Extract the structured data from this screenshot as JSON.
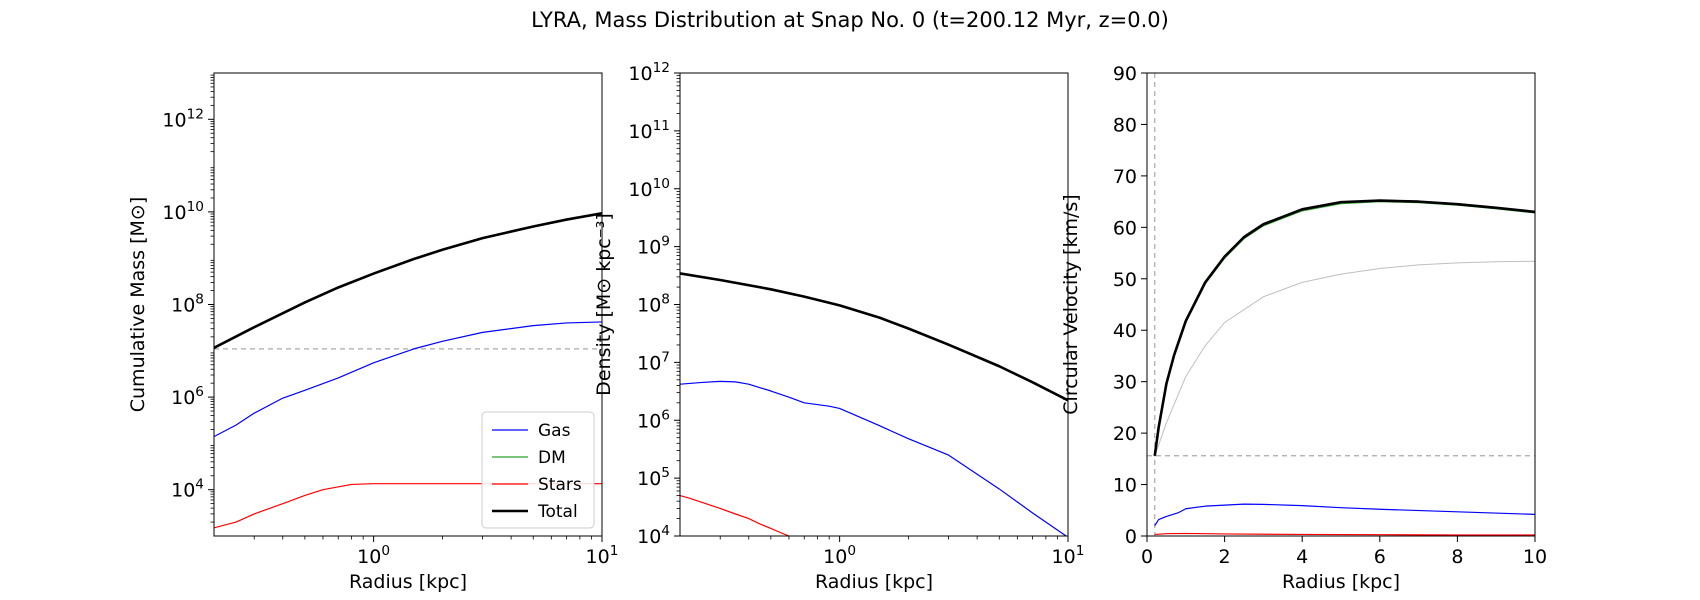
{
  "figure": {
    "title": "LYRA, Mass Distribution at Snap No. 0 (t=200.12 Myr, z=0.0)"
  },
  "colors": {
    "gas": "#0000ff",
    "dm": "#2ca02c",
    "stars": "#ff0000",
    "total": "#000000",
    "reference": "#aaaaaa",
    "halo_curve": "#bfbfbf"
  },
  "chart_data": [
    {
      "type": "line",
      "title": "",
      "xlabel": "Radius [kpc]",
      "ylabel": "Cumulative Mass [M⊙]",
      "xscale": "log",
      "yscale": "log",
      "xlim": [
        0.2,
        10
      ],
      "ylim": [
        1000,
        10000000000000.0
      ],
      "xticks": [
        {
          "v": 1,
          "label": "10^0"
        },
        {
          "v": 10,
          "label": "10^1"
        }
      ],
      "yticks": [
        {
          "v": 10000.0,
          "label": "10^4"
        },
        {
          "v": 1000000.0,
          "label": "10^6"
        },
        {
          "v": 100000000.0,
          "label": "10^8"
        },
        {
          "v": 10000000000.0,
          "label": "10^10"
        },
        {
          "v": 1000000000000.0,
          "label": "10^12"
        }
      ],
      "grid": false,
      "legend": "lower-right",
      "series": [
        {
          "name": "Gas",
          "key": "gas",
          "width": 1.2,
          "x": [
            0.2,
            0.25,
            0.3,
            0.4,
            0.5,
            0.7,
            1.0,
            1.5,
            2.0,
            3.0,
            5.0,
            7.0,
            10.0
          ],
          "y": [
            140000.0,
            250000.0,
            450000.0,
            950000.0,
            1400000.0,
            2600000.0,
            5500000.0,
            11000000.0,
            16000000.0,
            25000000.0,
            35000000.0,
            40000000.0,
            42000000.0
          ]
        },
        {
          "name": "DM",
          "key": "dm",
          "width": 1.2,
          "x": [
            0.2,
            0.3,
            0.5,
            0.7,
            1.0,
            1.5,
            2.0,
            3.0,
            5.0,
            7.0,
            10.0
          ],
          "y": [
            11500000.0,
            32000000.0,
            110000000.0,
            230000000.0,
            460000000.0,
            950000000.0,
            1500000000.0,
            2700000000.0,
            4800000000.0,
            6800000000.0,
            9300000000.0
          ]
        },
        {
          "name": "Stars",
          "key": "stars",
          "width": 1.2,
          "x": [
            0.2,
            0.25,
            0.3,
            0.4,
            0.5,
            0.6,
            0.8,
            1.0,
            2.0,
            5.0,
            10.0
          ],
          "y": [
            1500,
            2000,
            3000,
            5000,
            7500,
            10000,
            13000,
            13500,
            13500,
            13500,
            13500
          ]
        },
        {
          "name": "Total",
          "key": "total",
          "width": 2.6,
          "x": [
            0.2,
            0.3,
            0.5,
            0.7,
            1.0,
            1.5,
            2.0,
            3.0,
            5.0,
            7.0,
            10.0
          ],
          "y": [
            11600000.0,
            32400000.0,
            111000000.0,
            233000000.0,
            466000000.0,
            960000000.0,
            1520000000.0,
            2720000000.0,
            4840000000.0,
            6840000000.0,
            9340000000.0
          ]
        }
      ],
      "hlines": [
        {
          "y": 11000000.0
        }
      ]
    },
    {
      "type": "line",
      "title": "",
      "xlabel": "Radius [kpc]",
      "ylabel": "Density [M⊙ kpc⁻³]",
      "xscale": "log",
      "yscale": "log",
      "xlim": [
        0.2,
        10
      ],
      "ylim": [
        10000,
        1000000000000.0
      ],
      "xticks": [
        {
          "v": 1,
          "label": "10^0"
        },
        {
          "v": 10,
          "label": "10^1"
        }
      ],
      "yticks": [
        {
          "v": 10000.0,
          "label": "10^4"
        },
        {
          "v": 100000.0,
          "label": "10^5"
        },
        {
          "v": 1000000.0,
          "label": "10^6"
        },
        {
          "v": 10000000.0,
          "label": "10^7"
        },
        {
          "v": 100000000.0,
          "label": "10^8"
        },
        {
          "v": 1000000000.0,
          "label": "10^9"
        },
        {
          "v": 10000000000.0,
          "label": "10^10"
        },
        {
          "v": 100000000000.0,
          "label": "10^11"
        },
        {
          "v": 1000000000000.0,
          "label": "10^12"
        }
      ],
      "grid": false,
      "legend": "none",
      "series": [
        {
          "name": "Gas",
          "key": "gas",
          "width": 1.2,
          "x": [
            0.2,
            0.25,
            0.3,
            0.35,
            0.4,
            0.5,
            0.6,
            0.7,
            0.9,
            1.0,
            1.5,
            2.0,
            3.0,
            5.0,
            7.0,
            10.0
          ],
          "y": [
            4200000.0,
            4500000.0,
            4700000.0,
            4600000.0,
            4200000.0,
            3200000.0,
            2500000.0,
            2000000.0,
            1750000.0,
            1600000.0,
            800000.0,
            480000.0,
            250000.0,
            65000.0,
            25000.0,
            9500.0
          ]
        },
        {
          "name": "DM",
          "key": "dm",
          "width": 1.2,
          "x": [
            0.2,
            0.3,
            0.5,
            0.7,
            1.0,
            1.5,
            2.0,
            3.0,
            5.0,
            7.0,
            10.0
          ],
          "y": [
            340000000.0,
            260000000.0,
            180000000.0,
            135000000.0,
            95000000.0,
            58000000.0,
            38000000.0,
            20000000.0,
            8500000.0,
            4500000.0,
            2200000.0
          ]
        },
        {
          "name": "Stars",
          "key": "stars",
          "width": 1.2,
          "x": [
            0.2,
            0.22,
            0.25,
            0.3,
            0.35,
            0.4,
            0.45,
            0.5,
            0.55,
            0.6
          ],
          "y": [
            50000.0,
            45000.0,
            38000.0,
            30000.0,
            24000.0,
            20000.0,
            16000.0,
            13500.0,
            11500.0,
            10000.0
          ]
        },
        {
          "name": "Total",
          "key": "total",
          "width": 2.6,
          "x": [
            0.2,
            0.3,
            0.5,
            0.7,
            1.0,
            1.5,
            2.0,
            3.0,
            5.0,
            7.0,
            10.0
          ],
          "y": [
            345000000.0,
            265000000.0,
            183000000.0,
            137000000.0,
            96500000.0,
            59000000.0,
            38500000.0,
            20200000.0,
            8570000.0,
            4530000.0,
            2210000.0
          ]
        }
      ],
      "hlines": []
    },
    {
      "type": "line",
      "title": "",
      "xlabel": "Radius [kpc]",
      "ylabel": "Circular Velocity [km/s]",
      "xscale": "linear",
      "yscale": "linear",
      "xlim": [
        0,
        10
      ],
      "ylim": [
        0,
        90
      ],
      "xticks": [
        {
          "v": 0,
          "label": "0"
        },
        {
          "v": 2,
          "label": "2"
        },
        {
          "v": 4,
          "label": "4"
        },
        {
          "v": 6,
          "label": "6"
        },
        {
          "v": 8,
          "label": "8"
        },
        {
          "v": 10,
          "label": "10"
        }
      ],
      "yticks": [
        {
          "v": 0,
          "label": "0"
        },
        {
          "v": 10,
          "label": "10"
        },
        {
          "v": 20,
          "label": "20"
        },
        {
          "v": 30,
          "label": "30"
        },
        {
          "v": 40,
          "label": "40"
        },
        {
          "v": 50,
          "label": "50"
        },
        {
          "v": 60,
          "label": "60"
        },
        {
          "v": 70,
          "label": "70"
        },
        {
          "v": 80,
          "label": "80"
        },
        {
          "v": 90,
          "label": "90"
        }
      ],
      "grid": false,
      "legend": "none",
      "series": [
        {
          "key": "halo_curve",
          "width": 1.0,
          "x": [
            0.2,
            0.5,
            1.0,
            1.5,
            2.0,
            3.0,
            4.0,
            5.0,
            6.0,
            7.0,
            8.0,
            9.0,
            10.0
          ],
          "y": [
            15.5,
            22.0,
            31.0,
            37.0,
            41.5,
            46.5,
            49.3,
            50.9,
            52.0,
            52.7,
            53.1,
            53.3,
            53.4
          ]
        },
        {
          "name": "Gas",
          "key": "gas",
          "width": 1.2,
          "x": [
            0.2,
            0.3,
            0.5,
            0.8,
            1.0,
            1.5,
            2.0,
            2.5,
            3.0,
            4.0,
            5.0,
            6.0,
            8.0,
            10.0
          ],
          "y": [
            2.0,
            3.2,
            3.8,
            4.5,
            5.3,
            5.8,
            6.0,
            6.2,
            6.15,
            5.9,
            5.5,
            5.2,
            4.7,
            4.2
          ]
        },
        {
          "name": "Stars",
          "key": "stars",
          "width": 1.2,
          "x": [
            0.2,
            0.5,
            1.0,
            2.0,
            4.0,
            6.0,
            8.0,
            10.0
          ],
          "y": [
            0.3,
            0.45,
            0.5,
            0.4,
            0.3,
            0.25,
            0.2,
            0.2
          ]
        },
        {
          "name": "DM",
          "key": "dm",
          "width": 1.2,
          "x": [
            0.2,
            0.3,
            0.5,
            0.7,
            1.0,
            1.5,
            2.0,
            2.5,
            3.0,
            4.0,
            5.0,
            6.0,
            7.0,
            8.0,
            9.0,
            10.0
          ],
          "y": [
            15.5,
            21.0,
            29.5,
            35.0,
            41.5,
            49.0,
            54.0,
            57.8,
            60.3,
            63.2,
            64.6,
            65.0,
            64.8,
            64.3,
            63.6,
            62.8
          ]
        },
        {
          "name": "Total",
          "key": "total",
          "width": 2.6,
          "x": [
            0.2,
            0.3,
            0.5,
            0.7,
            1.0,
            1.5,
            2.0,
            2.5,
            3.0,
            4.0,
            5.0,
            6.0,
            7.0,
            8.0,
            9.0,
            10.0
          ],
          "y": [
            15.6,
            21.1,
            29.6,
            35.2,
            41.8,
            49.3,
            54.3,
            58.1,
            60.6,
            63.5,
            64.9,
            65.2,
            65.0,
            64.5,
            63.8,
            63.0
          ]
        }
      ],
      "hlines": [
        {
          "y": 15.6
        }
      ],
      "vlines": [
        {
          "x": 0.2
        }
      ]
    }
  ],
  "legend": {
    "items": [
      {
        "label": "Gas",
        "key": "gas"
      },
      {
        "label": "DM",
        "key": "dm"
      },
      {
        "label": "Stars",
        "key": "stars"
      },
      {
        "label": "Total",
        "key": "total"
      }
    ]
  }
}
